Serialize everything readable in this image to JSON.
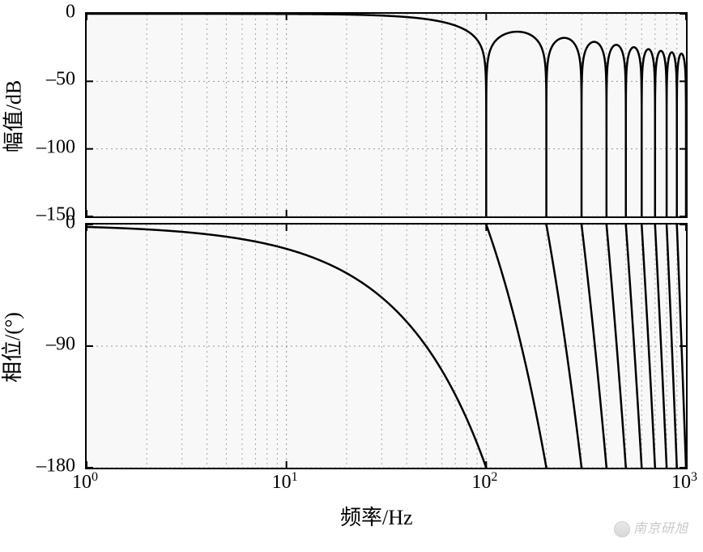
{
  "bode": {
    "type": "line",
    "x_scale": "log",
    "x_domain": [
      1,
      1000
    ],
    "x_ticks_major": [
      1,
      10,
      100,
      1000
    ],
    "x_tick_labels": [
      "10⁰",
      "10¹",
      "10²",
      "10³"
    ],
    "x_label": "频率/Hz",
    "background_color": "#f8f8f8",
    "border_color": "#000000",
    "grid_color": "#555555",
    "line_color": "#000000",
    "line_width": 2.5,
    "T": 0.01,
    "mag": {
      "ylabel": "幅值/dB",
      "ylim": [
        -150,
        0
      ],
      "yticks": [
        -150,
        -100,
        -50,
        0
      ],
      "label_fontsize": 26,
      "tick_fontsize": 24
    },
    "phase": {
      "ylabel": "相位/(°)",
      "ylim": [
        -180,
        0
      ],
      "yticks": [
        -180,
        -90,
        0
      ],
      "label_fontsize": 26,
      "tick_fontsize": 24
    }
  },
  "watermark": {
    "text": "南京研旭",
    "color": "#c8c8c8"
  }
}
